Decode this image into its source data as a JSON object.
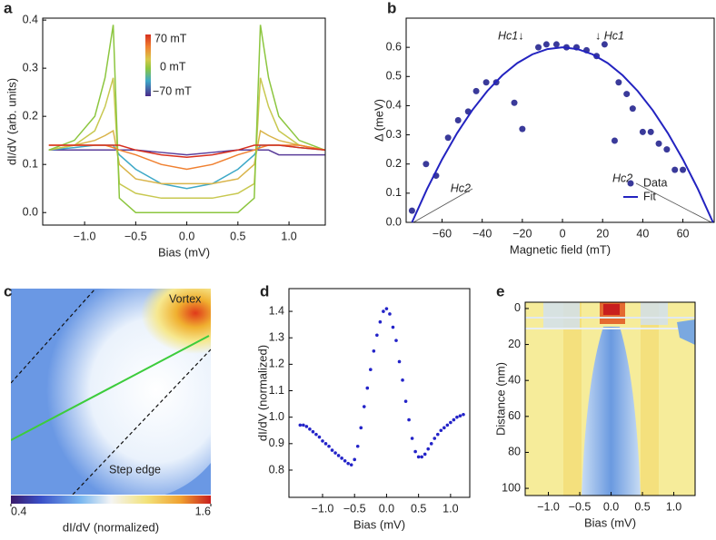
{
  "chart_data": [
    {
      "type": "line",
      "label": "a",
      "xlabel": "Bias (mV)",
      "ylabel": "dI/dV (arb. units)",
      "x": [
        -1.35,
        -1.1,
        -0.9,
        -0.8,
        -0.72,
        -0.66,
        -0.5,
        -0.25,
        0,
        0.25,
        0.5,
        0.66,
        0.72,
        0.8,
        0.9,
        1.1,
        1.35
      ],
      "series": [
        {
          "color": "#5a3d9a",
          "values": [
            0.13,
            0.13,
            0.13,
            0.13,
            0.13,
            0.13,
            0.13,
            0.125,
            0.12,
            0.125,
            0.13,
            0.13,
            0.13,
            0.13,
            0.12,
            0.12,
            0.12
          ]
        },
        {
          "color": "#3fa9c8",
          "values": [
            0.13,
            0.135,
            0.14,
            0.14,
            0.14,
            0.12,
            0.09,
            0.06,
            0.05,
            0.06,
            0.09,
            0.12,
            0.14,
            0.14,
            0.14,
            0.135,
            0.13
          ]
        },
        {
          "color": "#d9b44a",
          "values": [
            0.13,
            0.14,
            0.15,
            0.16,
            0.17,
            0.1,
            0.07,
            0.06,
            0.06,
            0.06,
            0.07,
            0.1,
            0.17,
            0.16,
            0.15,
            0.14,
            0.13
          ]
        },
        {
          "color": "#c8c850",
          "values": [
            0.13,
            0.14,
            0.17,
            0.22,
            0.28,
            0.06,
            0.04,
            0.03,
            0.03,
            0.03,
            0.04,
            0.06,
            0.28,
            0.22,
            0.17,
            0.14,
            0.13
          ]
        },
        {
          "color": "#8cc63f",
          "values": [
            0.13,
            0.15,
            0.2,
            0.28,
            0.39,
            0.03,
            0.0,
            0.0,
            0.0,
            0.0,
            0.0,
            0.03,
            0.39,
            0.28,
            0.2,
            0.15,
            0.13
          ]
        },
        {
          "color": "#f08030",
          "values": [
            0.14,
            0.14,
            0.14,
            0.14,
            0.135,
            0.13,
            0.12,
            0.1,
            0.09,
            0.1,
            0.12,
            0.13,
            0.135,
            0.14,
            0.14,
            0.14,
            0.13
          ]
        },
        {
          "color": "#d7301f",
          "values": [
            0.14,
            0.14,
            0.14,
            0.14,
            0.14,
            0.14,
            0.13,
            0.12,
            0.115,
            0.12,
            0.13,
            0.14,
            0.14,
            0.14,
            0.14,
            0.135,
            0.13
          ]
        }
      ],
      "annotations": [
        "70 mT",
        "0 mT",
        "−70 mT"
      ],
      "xlim": [
        -1.41,
        1.355
      ],
      "ylim": [
        -0.026,
        0.404
      ],
      "xticks": [
        {
          "value": -1,
          "label": "−1.0"
        },
        {
          "value": -0.5,
          "label": "−0.5"
        },
        {
          "value": 0,
          "label": "0.0"
        },
        0.5,
        {
          "value": 1,
          "label": "1.0"
        }
      ],
      "yticks": [
        {
          "value": 0,
          "label": "0.0"
        },
        0.1,
        0.2,
        0.3,
        0.4
      ]
    },
    {
      "type": "scatter",
      "label": "b",
      "xlabel": "Magnetic field (mT)",
      "ylabel": "Δ (meV)",
      "legend": "lower right",
      "series": [
        {
          "name": "Data",
          "type": "scatter",
          "color": "#3a3a9a",
          "x": [
            -75,
            -68,
            -63,
            -57,
            -52,
            -47,
            -43,
            -38,
            -33,
            -24,
            -20,
            -12,
            -8,
            -3,
            2,
            7,
            12,
            17,
            21,
            26,
            28,
            32,
            35,
            40,
            44,
            48,
            52,
            56,
            60
          ],
          "values": [
            0.04,
            0.2,
            0.16,
            0.29,
            0.35,
            0.38,
            0.45,
            0.48,
            0.48,
            0.41,
            0.32,
            0.6,
            0.61,
            0.61,
            0.6,
            0.6,
            0.59,
            0.57,
            0.61,
            0.28,
            0.48,
            0.44,
            0.39,
            0.31,
            0.31,
            0.27,
            0.25,
            0.18,
            0.18
          ]
        },
        {
          "name": "Fit",
          "type": "line",
          "color": "#2323c0",
          "x": [
            -75,
            -67.5,
            -60,
            -52.5,
            -45,
            -37.5,
            -30,
            -22.5,
            -15,
            -7.5,
            0,
            7.5,
            15,
            22.5,
            30,
            37.5,
            45,
            52.5,
            60,
            67.5,
            75
          ],
          "values": [
            0,
            0.114,
            0.216,
            0.306,
            0.384,
            0.45,
            0.504,
            0.546,
            0.576,
            0.594,
            0.6,
            0.594,
            0.576,
            0.546,
            0.504,
            0.45,
            0.384,
            0.306,
            0.216,
            0.114,
            0
          ]
        }
      ],
      "annotations": [
        "Hc1↓",
        "↓ Hc1",
        "Hc2",
        "Hc2"
      ],
      "xlim": [
        -77.9,
        75.6
      ],
      "ylim": [
        0,
        0.7
      ],
      "xticks": [
        {
          "value": -60,
          "label": "−60"
        },
        {
          "value": -40,
          "label": "−40"
        },
        {
          "value": -20,
          "label": "−20"
        },
        0,
        20,
        40,
        60
      ],
      "yticks": [
        {
          "value": 0,
          "label": "0.0"
        },
        0.1,
        0.2,
        0.3,
        0.4,
        0.5,
        0.6
      ]
    },
    {
      "type": "heatmap",
      "label": "c",
      "clabel": "dI/dV (normalized)",
      "clim": [
        0.4,
        1.6
      ],
      "cticks": [
        0.4,
        1.6
      ],
      "annotations": [
        "Vortex",
        "Step edge"
      ]
    },
    {
      "type": "scatter",
      "label": "d",
      "xlabel": "Bias (mV)",
      "ylabel": "dI/dV (normalized)",
      "series": [
        {
          "type": "scatter",
          "color": "#2323c8",
          "x": [
            -1.35,
            -1.3,
            -1.25,
            -1.2,
            -1.15,
            -1.1,
            -1.05,
            -1,
            -0.95,
            -0.9,
            -0.85,
            -0.8,
            -0.75,
            -0.7,
            -0.65,
            -0.6,
            -0.55,
            -0.5,
            -0.45,
            -0.4,
            -0.35,
            -0.3,
            -0.25,
            -0.2,
            -0.15,
            -0.1,
            -0.05,
            0,
            0.05,
            0.1,
            0.15,
            0.2,
            0.25,
            0.3,
            0.35,
            0.4,
            0.45,
            0.5,
            0.55,
            0.6,
            0.65,
            0.7,
            0.75,
            0.8,
            0.85,
            0.9,
            0.95,
            1,
            1.05,
            1.1,
            1.15,
            1.2
          ],
          "values": [
            0.97,
            0.97,
            0.965,
            0.955,
            0.945,
            0.935,
            0.925,
            0.91,
            0.9,
            0.89,
            0.875,
            0.865,
            0.855,
            0.845,
            0.835,
            0.825,
            0.82,
            0.84,
            0.89,
            0.96,
            1.04,
            1.11,
            1.18,
            1.25,
            1.31,
            1.36,
            1.4,
            1.41,
            1.39,
            1.34,
            1.29,
            1.21,
            1.14,
            1.06,
            0.99,
            0.92,
            0.87,
            0.85,
            0.85,
            0.86,
            0.88,
            0.9,
            0.92,
            0.935,
            0.95,
            0.96,
            0.97,
            0.98,
            0.99,
            1.0,
            1.005,
            1.01
          ]
        }
      ],
      "xlim": [
        -1.525,
        1.3
      ],
      "ylim": [
        0.697,
        1.486
      ],
      "xticks": [
        {
          "value": -1,
          "label": "−1.0"
        },
        {
          "value": -0.5,
          "label": "−0.5"
        },
        {
          "value": 0,
          "label": "0.0"
        },
        0.5,
        {
          "value": 1,
          "label": "1.0"
        }
      ],
      "yticks": [
        0.8,
        0.9,
        {
          "value": 1,
          "label": "1.0"
        },
        1.1,
        1.2,
        1.3,
        1.4
      ]
    },
    {
      "type": "heatmap",
      "label": "e",
      "xlabel": "Bias (mV)",
      "ylabel": "Distance (nm)",
      "xlim": [
        -1.37,
        1.34
      ],
      "ylim": [
        104,
        -3.5
      ],
      "xticks": [
        {
          "value": -1,
          "label": "−1.0"
        },
        {
          "value": -0.5,
          "label": "−0.5"
        },
        {
          "value": 0,
          "label": "0.0"
        },
        0.5,
        {
          "value": 1,
          "label": "1.0"
        }
      ],
      "yticks": [
        0,
        20,
        40,
        60,
        80,
        100
      ]
    }
  ]
}
